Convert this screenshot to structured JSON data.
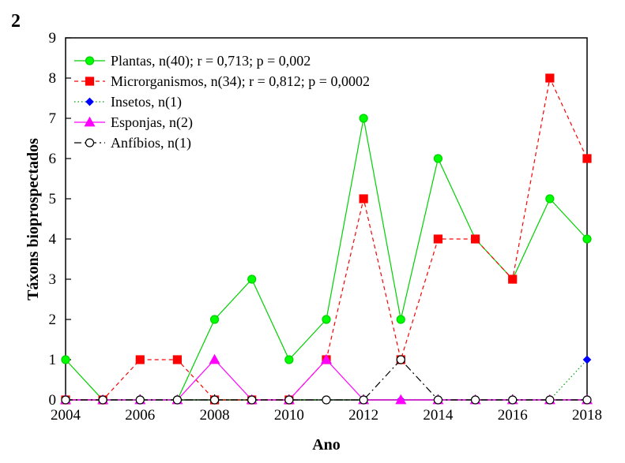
{
  "panel_label": "2",
  "chart_data": {
    "type": "line",
    "xlabel": "Ano",
    "ylabel": "Táxons bioprospectados",
    "xlim": [
      2004,
      2018
    ],
    "ylim": [
      0,
      9
    ],
    "x": [
      2004,
      2005,
      2006,
      2007,
      2008,
      2009,
      2010,
      2011,
      2012,
      2013,
      2014,
      2015,
      2016,
      2017,
      2018
    ],
    "x_ticks": [
      2004,
      2006,
      2008,
      2010,
      2012,
      2014,
      2016,
      2018
    ],
    "y_ticks": [
      0,
      1,
      2,
      3,
      4,
      5,
      6,
      7,
      8,
      9
    ],
    "legend_position": "top-left",
    "series": [
      {
        "name": "Plantas, n(40); r = 0,713; p = 0,002",
        "color": "#00d000",
        "marker": "circle",
        "marker_fill": "#00ff00",
        "line_style": "solid",
        "values": [
          1,
          0,
          0,
          0,
          2,
          3,
          1,
          2,
          7,
          2,
          6,
          4,
          3,
          5,
          4
        ]
      },
      {
        "name": "Microrganismos, n(34); r = 0,812; p = 0,0002",
        "color": "#ff0000",
        "marker": "square",
        "marker_fill": "#ff0000",
        "line_style": "dashed",
        "values": [
          0,
          0,
          1,
          1,
          0,
          0,
          0,
          1,
          5,
          1,
          4,
          4,
          3,
          8,
          6
        ]
      },
      {
        "name": "Insetos, n(1)",
        "color": "#00a000",
        "marker": "diamond",
        "marker_fill": "#0000ff",
        "line_style": "dotted",
        "values": [
          0,
          0,
          0,
          0,
          0,
          0,
          0,
          0,
          0,
          0,
          0,
          0,
          0,
          0,
          1
        ]
      },
      {
        "name": "Esponjas, n(2)",
        "color": "#ff00ff",
        "marker": "triangle",
        "marker_fill": "#ff00ff",
        "line_style": "solid",
        "values": [
          0,
          0,
          0,
          0,
          1,
          0,
          0,
          1,
          0,
          0,
          0,
          0,
          0,
          0,
          0
        ]
      },
      {
        "name": "Anfíbios, n(1)",
        "color": "#000000",
        "marker": "open-circle",
        "marker_fill": "#ffffff",
        "line_style": "dashdot",
        "values": [
          0,
          0,
          0,
          0,
          0,
          0,
          0,
          0,
          0,
          1,
          0,
          0,
          0,
          0,
          0
        ]
      }
    ]
  }
}
